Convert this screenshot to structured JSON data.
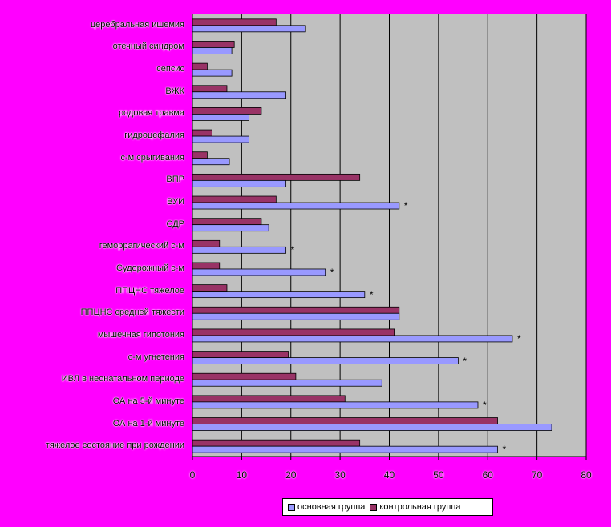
{
  "chart_data": {
    "type": "bar",
    "orientation": "horizontal",
    "xlim": [
      0,
      80
    ],
    "ticks": [
      0,
      10,
      20,
      30,
      40,
      50,
      60,
      70,
      80
    ],
    "grid": true,
    "categories": [
      "церебральная ишемия",
      "отечный синдром",
      "сепсис",
      "ВЖК",
      "родовая травма",
      "гидроцефалия",
      "с-м срыгивания",
      "ВПР",
      "ВУИ",
      "СДР",
      "геморрагический с-м",
      "Судорожный с-м",
      "ППЦНС тяжелое",
      "ППЦНС средней тяжести",
      "мышечная гипотония",
      "с-м угнетения",
      "ИВЛ в неонатальном периоде",
      "ОА на 5-й минуте",
      "ОА на 1-й минуте",
      "тяжелое состояние при рождении"
    ],
    "series": [
      {
        "name": "основная группа",
        "color": "#9999FF",
        "values": [
          23,
          8,
          8,
          19,
          11.5,
          11.5,
          7.5,
          19,
          42,
          15.5,
          19,
          27,
          35,
          42,
          65,
          54,
          38.5,
          58,
          73,
          62
        ]
      },
      {
        "name": "контрольная группа",
        "color": "#993366",
        "values": [
          17,
          8.5,
          3,
          7,
          14,
          4,
          3,
          34,
          17,
          14,
          5.5,
          5.5,
          7,
          42,
          41,
          19.5,
          21,
          31,
          62,
          34
        ]
      }
    ],
    "significance_marker": "*",
    "significant_indices": [
      8,
      10,
      11,
      12,
      14,
      15,
      17,
      19
    ],
    "legend_position": "bottom",
    "plot_background": "#C0C0C0"
  }
}
